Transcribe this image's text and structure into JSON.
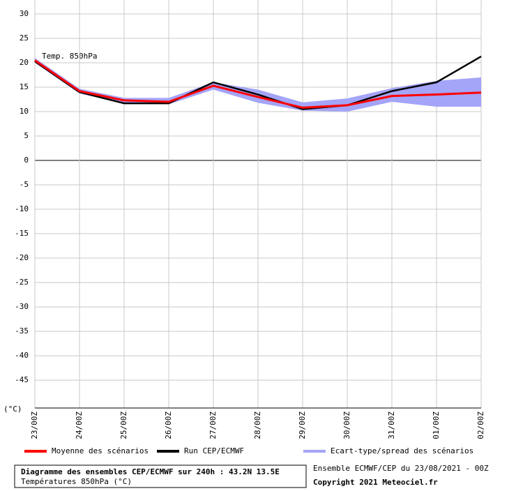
{
  "chart_data": {
    "type": "line",
    "annotation": "Temp. 850hPa",
    "y_unit": "(°C)",
    "title": "Diagramme des ensembles CEP/ECMWF sur 240h : 43.2N 13.5E",
    "subtitle": "Températures 850hPa (°C)",
    "source": "Ensemble ECMWF/CEP du 23/08/2021 - 00Z",
    "copyright": "Copyright 2021 Meteociel.fr",
    "categories": [
      "23/00Z",
      "24/00Z",
      "25/00Z",
      "26/00Z",
      "27/00Z",
      "28/00Z",
      "29/00Z",
      "30/00Z",
      "31/00Z",
      "01/00Z",
      "02/00Z"
    ],
    "spread": {
      "name": "Ecart-type/spread des scénarios",
      "color": "#a4a4f8",
      "lower": [
        20.0,
        13.7,
        11.8,
        11.5,
        14.5,
        11.8,
        10.2,
        10.0,
        12.0,
        11.0,
        11.0
      ],
      "upper": [
        21.0,
        14.7,
        12.8,
        12.8,
        16.0,
        14.5,
        11.9,
        12.7,
        14.8,
        16.3,
        17.0
      ]
    },
    "series": [
      {
        "name": "Moyenne des scénarios",
        "color": "#ff0000",
        "values": [
          20.5,
          14.2,
          12.3,
          12.0,
          15.3,
          13.0,
          10.8,
          11.3,
          13.2,
          13.5,
          13.9
        ]
      },
      {
        "name": "Run CEP/ECMWF",
        "color": "#000000",
        "values": [
          20.3,
          14.0,
          11.7,
          11.7,
          16.0,
          13.5,
          10.5,
          11.3,
          14.2,
          16.0,
          21.3
        ]
      }
    ],
    "ylim": [
      -50.7,
      30
    ],
    "yticks": [
      30,
      25,
      20,
      15,
      10,
      5,
      0,
      -5,
      -10,
      -15,
      -20,
      -25,
      -30,
      -35,
      -40,
      -45
    ],
    "grid": true
  }
}
